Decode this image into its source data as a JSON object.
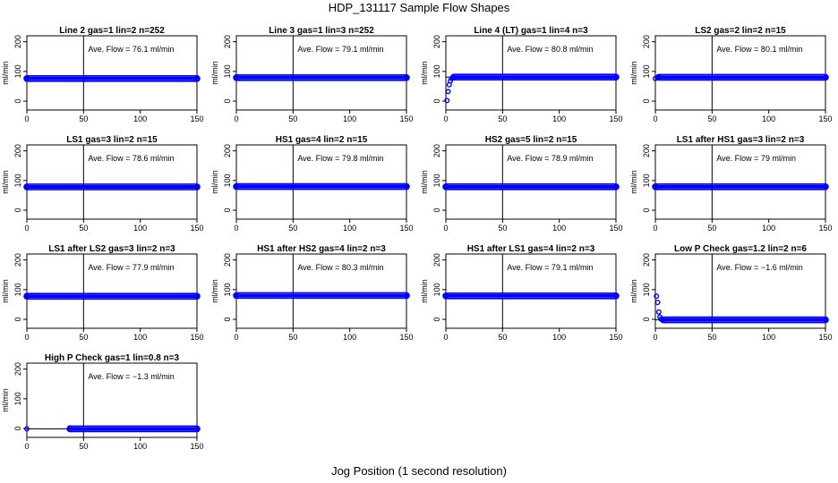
{
  "page": {
    "title": "HDP_131117  Sample Flow Shapes",
    "xlabel": "Jog Position (1 second resolution)",
    "ylabel": "ml/min"
  },
  "colors": {
    "points": "#0000ff",
    "axis": "#000000",
    "background": "#ffffff"
  },
  "chart_data": [
    {
      "type": "scatter",
      "title": "Line 2 gas=1 lin=2 n=252",
      "annotation": "Ave. Flow = 76.1  ml/min",
      "flow": 76.1,
      "xlim": [
        0,
        150
      ],
      "ylim": [
        -30,
        220
      ],
      "xticks": [
        0,
        50,
        100,
        150
      ],
      "yticks": [
        0,
        100,
        200
      ],
      "vline": 50,
      "hline": 76.1,
      "points": [
        [
          0,
          76.1
        ],
        [
          150,
          76.1
        ]
      ]
    },
    {
      "type": "scatter",
      "title": "Line 3 gas=1 lin=3 n=252",
      "annotation": "Ave. Flow = 79.1  ml/min",
      "flow": 79.1,
      "xlim": [
        0,
        150
      ],
      "ylim": [
        -30,
        220
      ],
      "xticks": [
        0,
        50,
        100,
        150
      ],
      "yticks": [
        0,
        100,
        200
      ],
      "vline": 50,
      "hline": 79.1,
      "points": [
        [
          0,
          79.1
        ],
        [
          150,
          79.1
        ]
      ]
    },
    {
      "type": "scatter",
      "title": "Line 4 (LT) gas=1 lin=4 n=3",
      "annotation": "Ave. Flow = 80.8  ml/min",
      "flow": 80.8,
      "xlim": [
        0,
        150
      ],
      "ylim": [
        -30,
        220
      ],
      "xticks": [
        0,
        50,
        100,
        150
      ],
      "yticks": [
        0,
        100,
        200
      ],
      "vline": 50,
      "hline": 80.8,
      "points": [
        [
          1,
          2
        ],
        [
          2,
          32
        ],
        [
          3,
          55
        ],
        [
          4,
          68
        ],
        [
          5,
          76
        ],
        [
          7,
          80
        ],
        [
          150,
          80.8
        ]
      ]
    },
    {
      "type": "scatter",
      "title": "LS2 gas=2 lin=2 n=15",
      "annotation": "Ave. Flow = 80.1  ml/min",
      "flow": 80.1,
      "xlim": [
        0,
        150
      ],
      "ylim": [
        -30,
        220
      ],
      "xticks": [
        0,
        50,
        100,
        150
      ],
      "yticks": [
        0,
        100,
        200
      ],
      "vline": 50,
      "hline": 80.1,
      "points": [
        [
          0,
          76
        ],
        [
          3,
          80.1
        ],
        [
          150,
          80.1
        ]
      ]
    },
    {
      "type": "scatter",
      "title": "LS1 gas=3 lin=2 n=15",
      "annotation": "Ave. Flow = 78.6  ml/min",
      "flow": 78.6,
      "xlim": [
        0,
        150
      ],
      "ylim": [
        -30,
        220
      ],
      "xticks": [
        0,
        50,
        100,
        150
      ],
      "yticks": [
        0,
        100,
        200
      ],
      "vline": 50,
      "hline": 78.6,
      "points": [
        [
          0,
          78.6
        ],
        [
          150,
          78.6
        ]
      ]
    },
    {
      "type": "scatter",
      "title": "HS1 gas=4 lin=2 n=15",
      "annotation": "Ave. Flow = 79.8  ml/min",
      "flow": 79.8,
      "xlim": [
        0,
        150
      ],
      "ylim": [
        -30,
        220
      ],
      "xticks": [
        0,
        50,
        100,
        150
      ],
      "yticks": [
        0,
        100,
        200
      ],
      "vline": 50,
      "hline": 79.8,
      "points": [
        [
          0,
          79.8
        ],
        [
          150,
          79.8
        ]
      ]
    },
    {
      "type": "scatter",
      "title": "HS2 gas=5 lin=2 n=15",
      "annotation": "Ave. Flow = 78.9  ml/min",
      "flow": 78.9,
      "xlim": [
        0,
        150
      ],
      "ylim": [
        -30,
        220
      ],
      "xticks": [
        0,
        50,
        100,
        150
      ],
      "yticks": [
        0,
        100,
        200
      ],
      "vline": 50,
      "hline": 78.9,
      "points": [
        [
          0,
          78.9
        ],
        [
          150,
          78.9
        ]
      ]
    },
    {
      "type": "scatter",
      "title": "LS1 after HS1 gas=3 lin=2 n=3",
      "annotation": "Ave. Flow = 79  ml/min",
      "flow": 79,
      "xlim": [
        0,
        150
      ],
      "ylim": [
        -30,
        220
      ],
      "xticks": [
        0,
        50,
        100,
        150
      ],
      "yticks": [
        0,
        100,
        200
      ],
      "vline": 50,
      "hline": 79,
      "points": [
        [
          0,
          79
        ],
        [
          150,
          79
        ]
      ]
    },
    {
      "type": "scatter",
      "title": "LS1 after LS2 gas=3 lin=2 n=3",
      "annotation": "Ave. Flow = 77.9  ml/min",
      "flow": 77.9,
      "xlim": [
        0,
        150
      ],
      "ylim": [
        -30,
        220
      ],
      "xticks": [
        0,
        50,
        100,
        150
      ],
      "yticks": [
        0,
        100,
        200
      ],
      "vline": 50,
      "hline": 77.9,
      "points": [
        [
          0,
          77.9
        ],
        [
          150,
          77.9
        ]
      ]
    },
    {
      "type": "scatter",
      "title": "HS1 after HS2 gas=4 lin=2 n=3",
      "annotation": "Ave. Flow = 80.3  ml/min",
      "flow": 80.3,
      "xlim": [
        0,
        150
      ],
      "ylim": [
        -30,
        220
      ],
      "xticks": [
        0,
        50,
        100,
        150
      ],
      "yticks": [
        0,
        100,
        200
      ],
      "vline": 50,
      "hline": 80.3,
      "points": [
        [
          0,
          80.3
        ],
        [
          150,
          80.3
        ]
      ]
    },
    {
      "type": "scatter",
      "title": "HS1 after LS1 gas=4 lin=2 n=3",
      "annotation": "Ave. Flow = 79.1  ml/min",
      "flow": 79.1,
      "xlim": [
        0,
        150
      ],
      "ylim": [
        -30,
        220
      ],
      "xticks": [
        0,
        50,
        100,
        150
      ],
      "yticks": [
        0,
        100,
        200
      ],
      "vline": 50,
      "hline": 79.1,
      "points": [
        [
          0,
          79.1
        ],
        [
          150,
          79.1
        ]
      ]
    },
    {
      "type": "scatter",
      "title": "Low P Check gas=1.2 lin=2 n=6",
      "annotation": "Ave. Flow = −1.6  ml/min",
      "flow": -1.6,
      "xlim": [
        0,
        150
      ],
      "ylim": [
        -30,
        220
      ],
      "xticks": [
        0,
        50,
        100,
        150
      ],
      "yticks": [
        0,
        100,
        200
      ],
      "vline": 50,
      "hline": -1.6,
      "points": [
        [
          1,
          78
        ],
        [
          2,
          57
        ],
        [
          3,
          25
        ],
        [
          4,
          8
        ],
        [
          5,
          1
        ],
        [
          7,
          -1.6
        ],
        [
          150,
          -1.6
        ]
      ]
    },
    {
      "type": "scatter",
      "title": "High P Check gas=1 lin=0.8 n=3",
      "annotation": "Ave. Flow = −1.3  ml/min",
      "flow": -1.3,
      "xlim": [
        0,
        150
      ],
      "ylim": [
        -30,
        220
      ],
      "xticks": [
        0,
        50,
        100,
        150
      ],
      "yticks": [
        0,
        100,
        200
      ],
      "vline": 50,
      "hline": -1.3,
      "points": [
        [
          0,
          -1.3
        ],
        [
          38,
          2
        ],
        [
          150,
          -1.3
        ]
      ]
    }
  ]
}
